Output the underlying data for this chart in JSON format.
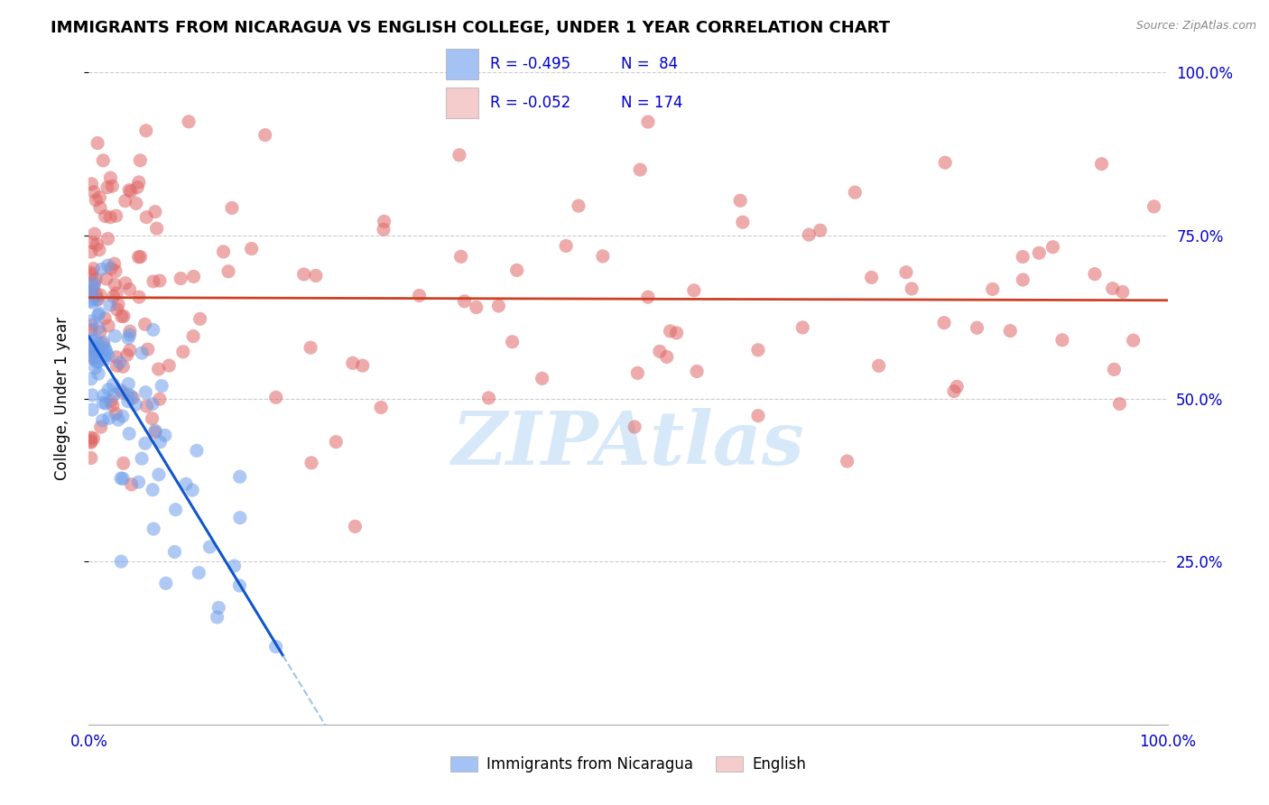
{
  "title": "IMMIGRANTS FROM NICARAGUA VS ENGLISH COLLEGE, UNDER 1 YEAR CORRELATION CHART",
  "source": "Source: ZipAtlas.com",
  "ylabel": "College, Under 1 year",
  "xlim": [
    0.0,
    1.0
  ],
  "ylim": [
    0.0,
    1.0
  ],
  "legend_r1": "R = -0.495",
  "legend_n1": "N =  84",
  "legend_r2": "R = -0.052",
  "legend_n2": "N = 174",
  "blue_color": "#a4c2f4",
  "pink_color": "#f4cccc",
  "blue_scatter_color": "#6d9eeb",
  "pink_scatter_color": "#e06666",
  "blue_line_color": "#1155cc",
  "pink_line_color": "#cc4125",
  "dashed_line_color": "#9fc5e8",
  "watermark_color": "#b6d7f5",
  "title_color": "#000000",
  "axis_label_color": "#0000cc",
  "blue_seed": 42,
  "pink_seed": 17,
  "n_blue": 84,
  "n_pink": 174,
  "blue_line_solid_end": 0.18,
  "blue_line_full_end": 0.5,
  "pink_line_start": 0.0,
  "pink_line_end": 1.0
}
